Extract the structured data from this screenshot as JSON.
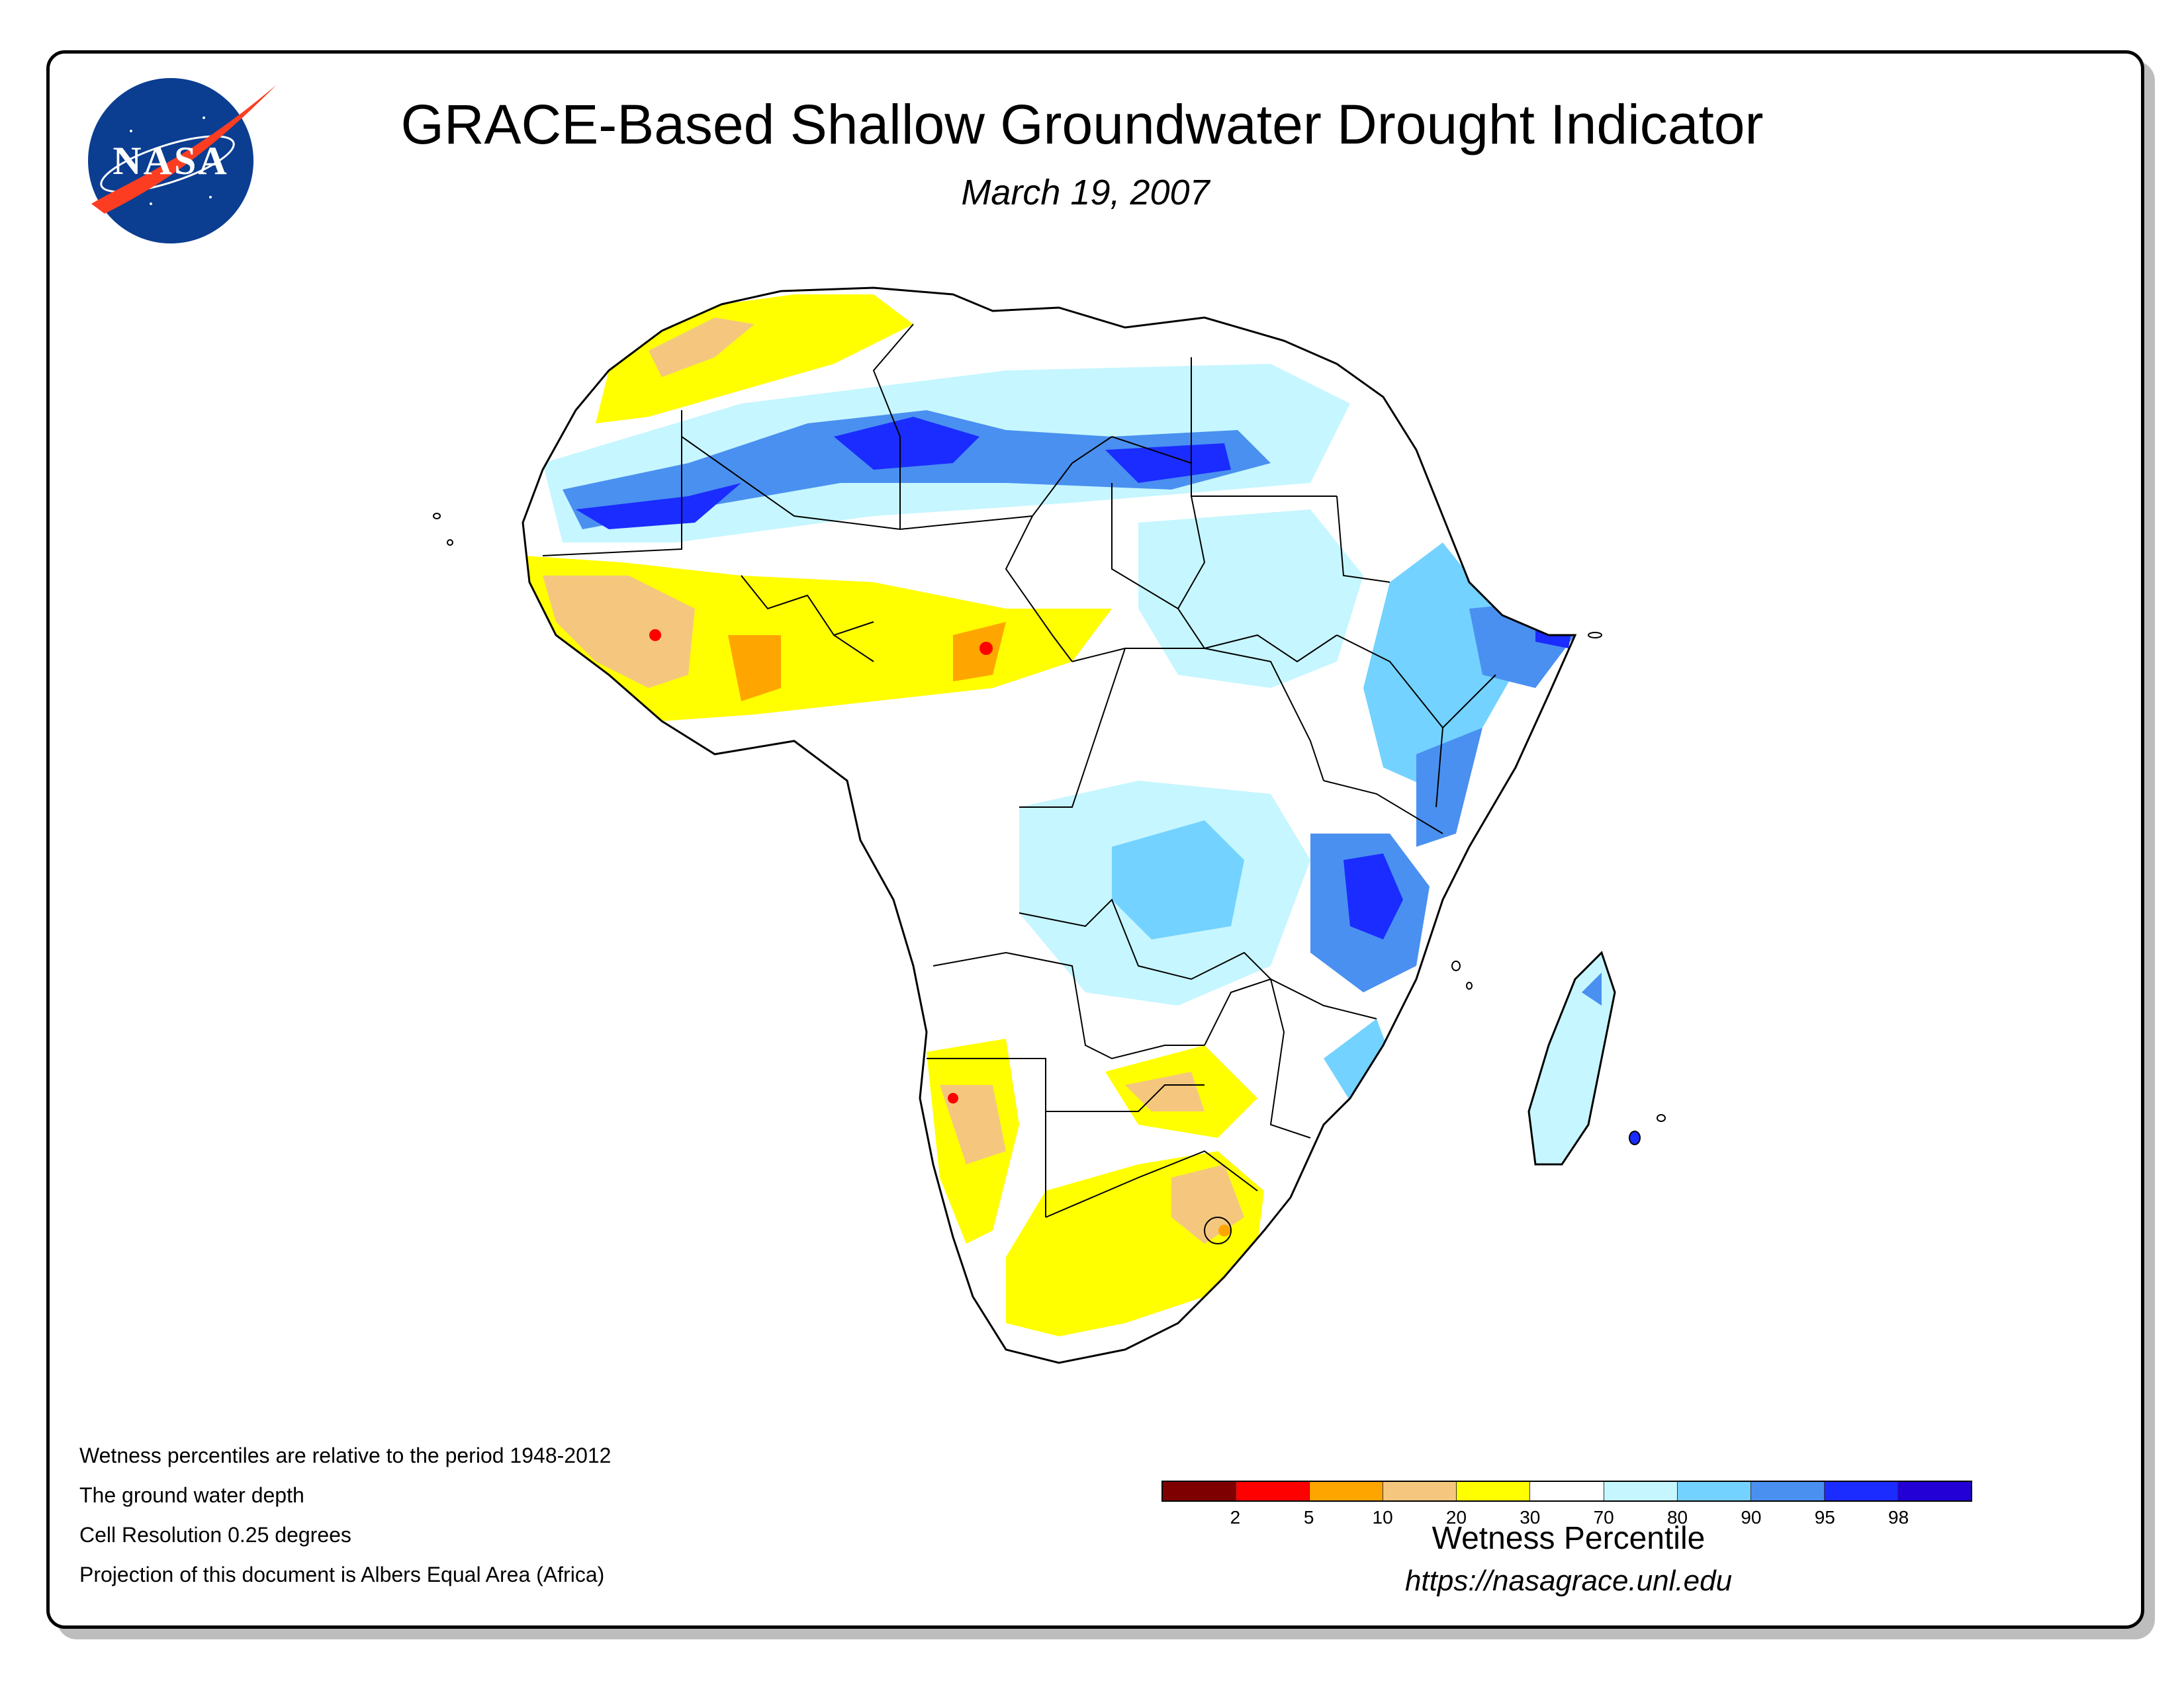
{
  "header": {
    "title": "GRACE-Based Shallow Groundwater Drought Indicator",
    "date": "March 19, 2007"
  },
  "logo": {
    "text": "NASA",
    "icon": "nasa-meatball-logo",
    "colors": {
      "blue": "#0b3d91",
      "red": "#fc3d21",
      "white": "#ffffff"
    }
  },
  "map": {
    "region": "Africa",
    "icon": "africa-map-icon"
  },
  "notes": [
    "Wetness percentiles are relative to the period 1948-2012",
    "The ground water depth",
    "Cell Resolution 0.25 degrees",
    "Projection of this document is Albers Equal Area (Africa)"
  ],
  "legend": {
    "title": "Wetness Percentile",
    "colors": [
      "#7f0000",
      "#ff0000",
      "#ffa500",
      "#f5c77e",
      "#ffff00",
      "#ffffff",
      "#c6f6ff",
      "#73d2ff",
      "#4a90f0",
      "#1a2cff",
      "#2200d6"
    ],
    "tick_labels": [
      "2",
      "5",
      "10",
      "20",
      "30",
      "70",
      "80",
      "90",
      "95",
      "98"
    ]
  },
  "footer": {
    "url": "https://nasagrace.unl.edu"
  }
}
